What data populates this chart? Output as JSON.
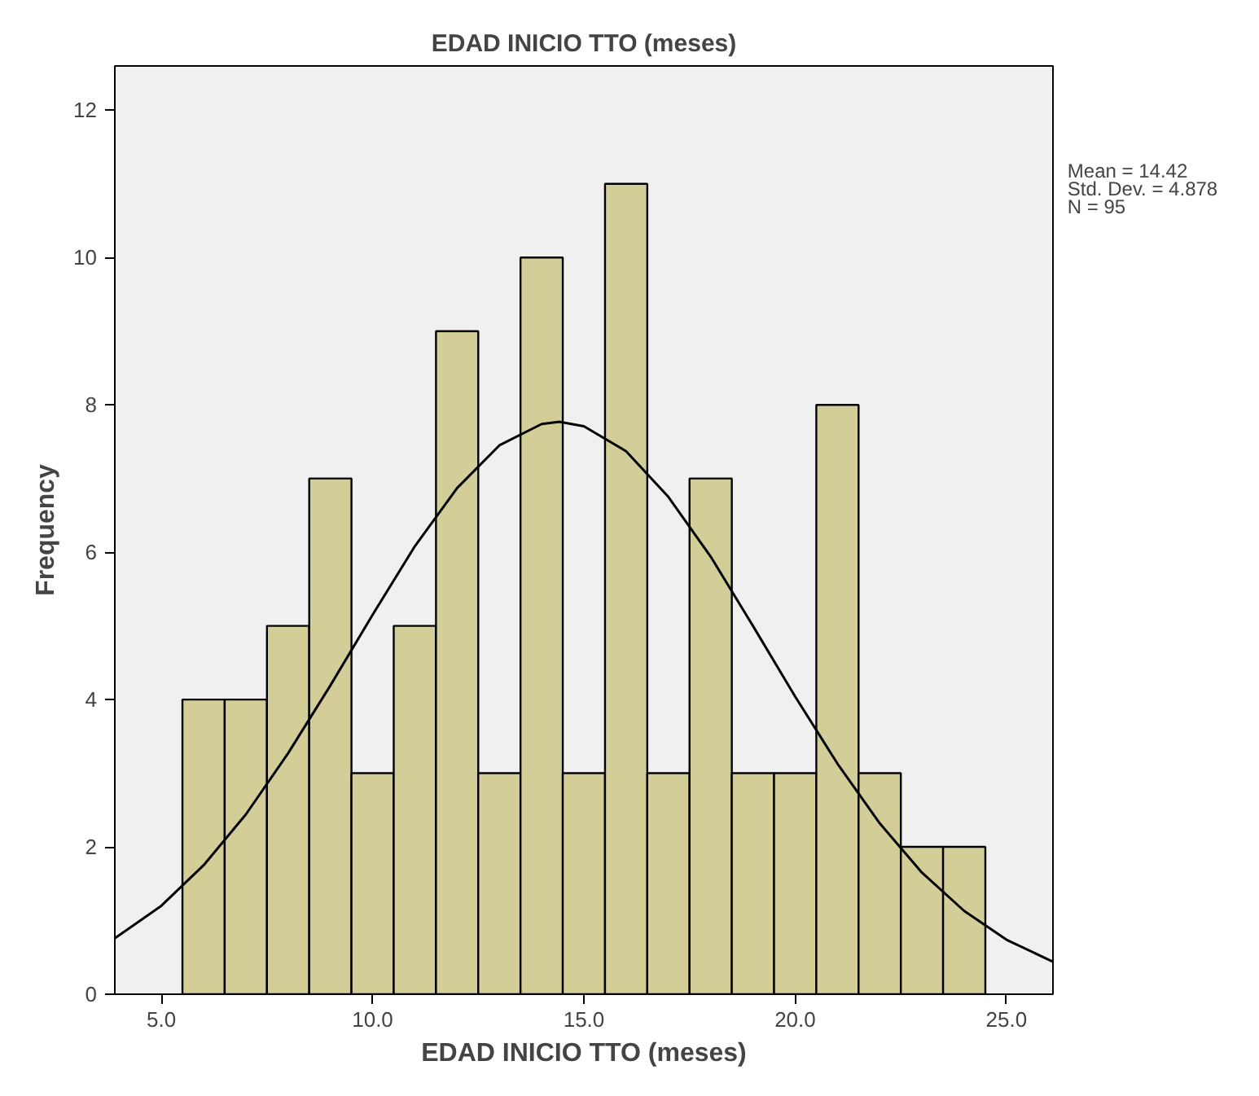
{
  "chart_data": {
    "type": "histogram",
    "title": "EDAD INICIO TTO (meses)",
    "xlabel": "EDAD INICIO TTO (meses)",
    "ylabel": "Frequency",
    "bins": [
      5.5,
      6.5,
      7.5,
      8.5,
      9.5,
      10.5,
      11.5,
      12.5,
      13.5,
      14.5,
      15.5,
      16.5,
      17.5,
      18.5,
      19.5,
      20.5,
      21.5,
      22.5,
      23.5,
      24.5
    ],
    "values": [
      4,
      4,
      5,
      7,
      3,
      5,
      9,
      3,
      10,
      3,
      11,
      3,
      7,
      3,
      3,
      8,
      3,
      2,
      2
    ],
    "color": "#d3ce97",
    "series": [
      {
        "type": "line",
        "color": "#000000",
        "x": [
          3.9,
          5,
          6,
          7,
          8,
          9,
          10,
          11,
          12,
          13,
          14,
          14.42,
          15,
          16,
          17,
          18,
          19,
          20,
          21,
          22,
          23,
          24,
          25,
          26.1
        ],
        "values": [
          0.76,
          1.2,
          1.75,
          2.44,
          3.27,
          4.19,
          5.15,
          6.08,
          6.87,
          7.45,
          7.74,
          7.77,
          7.71,
          7.37,
          6.75,
          5.94,
          5.0,
          4.04,
          3.13,
          2.32,
          1.65,
          1.13,
          0.74,
          0.44
        ]
      }
    ],
    "xlim": [
      3.9,
      26.1
    ],
    "ylim": [
      0,
      12.6
    ],
    "xticks": [
      {
        "value": 5,
        "label": "5.0"
      },
      {
        "value": 10,
        "label": "10.0"
      },
      {
        "value": 15,
        "label": "15.0"
      },
      {
        "value": 20,
        "label": "20.0"
      },
      {
        "value": 25,
        "label": "25.0"
      }
    ],
    "yticks": [
      0,
      2,
      4,
      6,
      8,
      10,
      12
    ],
    "annotations": [
      "Mean = 14.42",
      "Std. Dev. = 4.878",
      "N = 95"
    ],
    "grid": false
  }
}
